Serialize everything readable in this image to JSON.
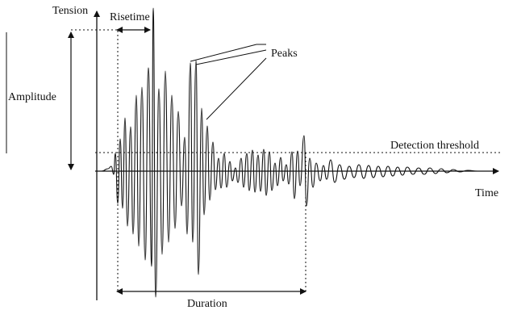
{
  "labels": {
    "tension": "Tension",
    "risetime": "Risetime",
    "amplitude": "Amplitude",
    "peaks": "Peaks",
    "detection_threshold": "Detection threshold",
    "time": "Time",
    "duration": "Duration"
  },
  "colors": {
    "ink": "#111111",
    "background": "#ffffff"
  }
}
